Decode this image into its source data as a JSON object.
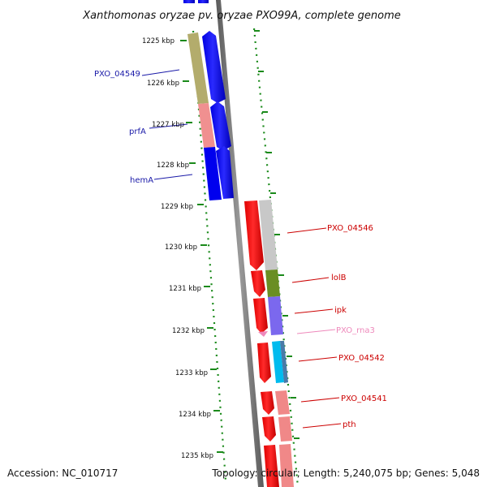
{
  "title": "Xanthomonas oryzae pv. oryzae PXO99A, complete genome",
  "footer": {
    "accession": "Accession: NC_010717",
    "summary": "Topology: circular; Length: 5,240,075 bp; Genes: 5,048"
  },
  "ruler": {
    "unit": "kbp",
    "ticks": [
      "1225 kbp",
      "1226 kbp",
      "1227 kbp",
      "1228 kbp",
      "1229 kbp",
      "1230 kbp",
      "1231 kbp",
      "1232 kbp",
      "1233 kbp",
      "1234 kbp",
      "1235 kbp"
    ]
  },
  "colors": {
    "forward_cds": "#0000ff",
    "reverse_cds": "#ff0000",
    "backbone": "#808080",
    "ruler_dots": "#1a8a1a",
    "label_forward": "#1a1aa8",
    "label_reverse": "#cc0000",
    "label_rna": "#ee88bb"
  },
  "genes": [
    {
      "label": "PXO_04549",
      "strand": "forward",
      "color": "#1a1aa8"
    },
    {
      "label": "prfA",
      "strand": "forward",
      "color": "#1a1aa8"
    },
    {
      "label": "hemA",
      "strand": "forward",
      "color": "#1a1aa8"
    },
    {
      "label": "PXO_04546",
      "strand": "reverse",
      "color": "#cc0000"
    },
    {
      "label": "lolB",
      "strand": "reverse",
      "color": "#cc0000"
    },
    {
      "label": "ipk",
      "strand": "reverse",
      "color": "#cc0000"
    },
    {
      "label": "PXO_rna3",
      "strand": "reverse",
      "color": "#ee88bb"
    },
    {
      "label": "PXO_04542",
      "strand": "reverse",
      "color": "#cc0000"
    },
    {
      "label": "PXO_04541",
      "strand": "reverse",
      "color": "#cc0000"
    },
    {
      "label": "pth",
      "strand": "reverse",
      "color": "#cc0000"
    }
  ]
}
